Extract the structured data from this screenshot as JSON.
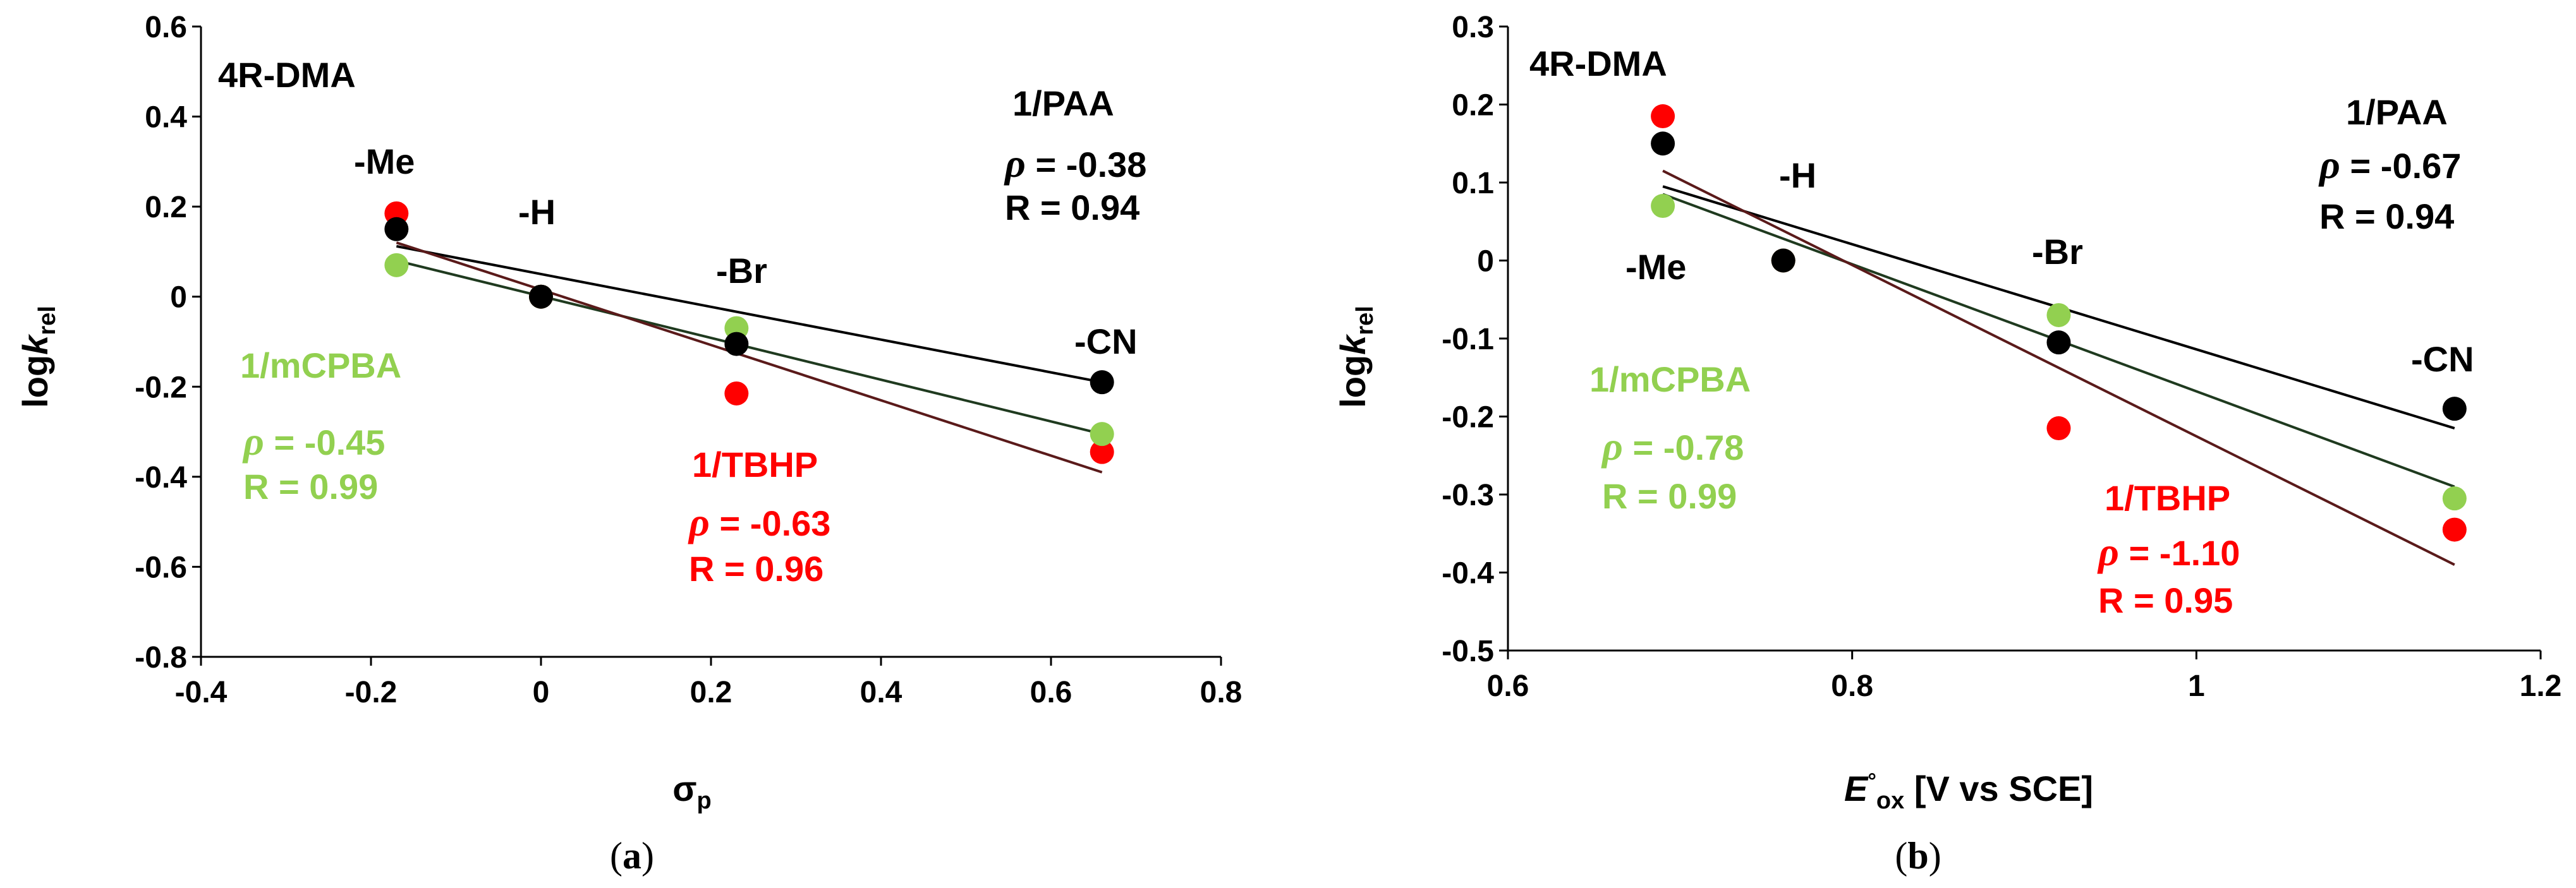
{
  "colors": {
    "PAA": "#000000",
    "mCPBA": "#92d050",
    "TBHP": "#ff0000",
    "fit_TBHP": "#5a1a1a",
    "fit_mCPBA": "#1f3a1f"
  },
  "chart_data": [
    {
      "type": "scatter",
      "caption": "(a)",
      "caption_letter": "a",
      "title": "4R-DMA",
      "xlabel": "σp",
      "xlabel_main": "σ",
      "xlabel_sub": "p",
      "ylabel_main": "log",
      "ylabel_k": "k",
      "ylabel_sub": "rel",
      "xlim": [
        -0.4,
        0.8
      ],
      "ylim": [
        -0.8,
        0.6
      ],
      "xticks": [
        -0.4,
        -0.2,
        0,
        0.2,
        0.4,
        0.6,
        0.8
      ],
      "xtick_labels": [
        "-0.4",
        "-0.2",
        "0",
        "0.2",
        "0.4",
        "0.6",
        "0.8"
      ],
      "yticks": [
        -0.8,
        -0.6,
        -0.4,
        -0.2,
        0,
        0.2,
        0.4,
        0.6
      ],
      "ytick_labels": [
        "-0.8",
        "-0.6",
        "-0.4",
        "-0.2",
        "0",
        "0.2",
        "0.4",
        "0.6"
      ],
      "substituents": [
        "-Me",
        "-H",
        "-Br",
        "-CN"
      ],
      "series": [
        {
          "name": "1/PAA",
          "color": "#000000",
          "x": [
            -0.17,
            0,
            0.23,
            0.66
          ],
          "y": [
            0.15,
            0,
            -0.105,
            -0.19
          ],
          "rho_text": " = -0.38",
          "r_text": "R = 0.94",
          "fit": [
            [
              -0.17,
              0.112
            ],
            [
              0.66,
              -0.19
            ]
          ]
        },
        {
          "name": "1/mCPBA",
          "color": "#92d050",
          "x": [
            -0.17,
            0,
            0.23,
            0.66
          ],
          "y": [
            0.07,
            0,
            -0.07,
            -0.305
          ],
          "rho_text": " = -0.45",
          "r_text": "R = 0.99",
          "fit": [
            [
              -0.17,
              0.08
            ],
            [
              0.66,
              -0.305
            ]
          ]
        },
        {
          "name": "1/TBHP",
          "color": "#ff0000",
          "x": [
            -0.17,
            0,
            0.23,
            0.66
          ],
          "y": [
            0.185,
            0,
            -0.215,
            -0.345
          ],
          "rho_text": " = -0.63",
          "r_text": "R = 0.96",
          "fit": [
            [
              -0.17,
              0.12
            ],
            [
              0.66,
              -0.39
            ]
          ]
        }
      ]
    },
    {
      "type": "scatter",
      "caption": "(b)",
      "caption_letter": "b",
      "title": "4R-DMA",
      "xlabel": "E°ox [V vs SCE]",
      "xlabel_main": "E",
      "xlabel_deg": "°",
      "xlabel_sub": "ox",
      "xlabel_rest": " [V vs SCE]",
      "ylabel_main": "log",
      "ylabel_k": "k",
      "ylabel_sub": "rel",
      "xlim": [
        0.6,
        1.2
      ],
      "ylim": [
        -0.5,
        0.3
      ],
      "xticks": [
        0.6,
        0.8,
        1.0,
        1.2
      ],
      "xtick_labels": [
        "0.6",
        "0.8",
        "1",
        "1.2"
      ],
      "yticks": [
        -0.5,
        -0.4,
        -0.3,
        -0.2,
        -0.1,
        0,
        0.1,
        0.2,
        0.3
      ],
      "ytick_labels": [
        "-0.5",
        "-0.4",
        "-0.3",
        "-0.2",
        "-0.1",
        "0",
        "0.1",
        "0.2",
        "0.3"
      ],
      "substituents": [
        "-Me",
        "-H",
        "-Br",
        "-CN"
      ],
      "series": [
        {
          "name": "1/PAA",
          "color": "#000000",
          "x": [
            0.69,
            0.76,
            0.92,
            1.15
          ],
          "y": [
            0.15,
            0,
            -0.105,
            -0.19
          ],
          "rho_text": " = -0.67",
          "r_text": "R = 0.94",
          "fit": [
            [
              0.69,
              0.095
            ],
            [
              1.15,
              -0.215
            ]
          ]
        },
        {
          "name": "1/mCPBA",
          "color": "#92d050",
          "x": [
            0.69,
            0.76,
            0.92,
            1.15
          ],
          "y": [
            0.07,
            0,
            -0.07,
            -0.305
          ],
          "rho_text": " = -0.78",
          "r_text": "R = 0.99",
          "fit": [
            [
              0.69,
              0.085
            ],
            [
              1.15,
              -0.29
            ]
          ]
        },
        {
          "name": "1/TBHP",
          "color": "#ff0000",
          "x": [
            0.69,
            0.76,
            0.92,
            1.15
          ],
          "y": [
            0.185,
            0,
            -0.215,
            -0.345
          ],
          "rho_text": " = -1.10",
          "r_text": "R = 0.95",
          "fit": [
            [
              0.69,
              0.115
            ],
            [
              1.15,
              -0.39
            ]
          ]
        }
      ]
    }
  ],
  "rho_symbol": "ρ"
}
